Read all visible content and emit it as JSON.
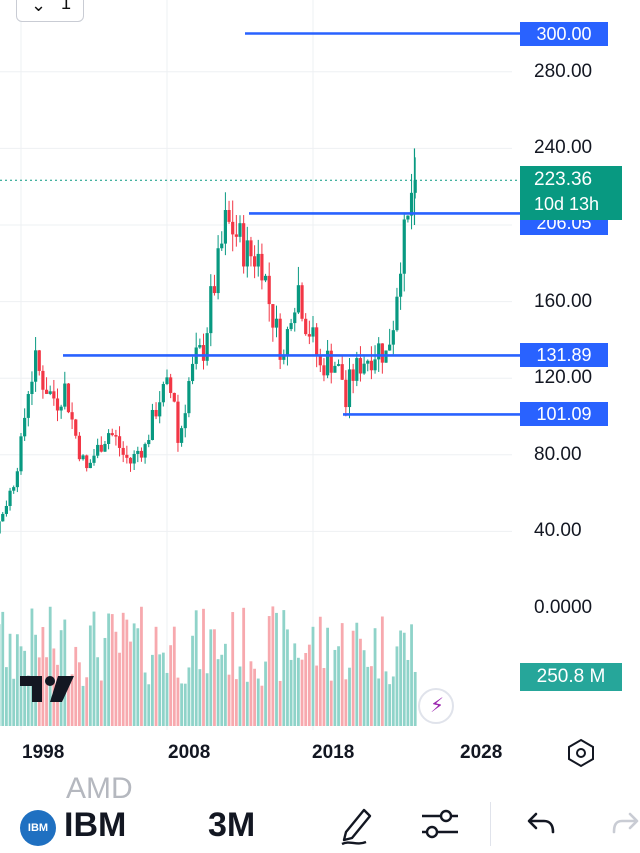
{
  "toolbar_top": {
    "widget_number": "1"
  },
  "y_axis": {
    "labels": [
      {
        "value": 280,
        "text": "280.00"
      },
      {
        "value": 240,
        "text": "240.00"
      },
      {
        "value": 160,
        "text": "160.00"
      },
      {
        "value": 120,
        "text": "120.00"
      },
      {
        "value": 80,
        "text": "80.00"
      },
      {
        "value": 40,
        "text": "40.00"
      },
      {
        "value": 0,
        "text": "0.0000"
      }
    ]
  },
  "levels": [
    {
      "value": 300.0,
      "text": "300.00"
    },
    {
      "value": 206.05,
      "text": "206.05"
    },
    {
      "value": 131.89,
      "text": "131.89"
    },
    {
      "value": 101.09,
      "text": "101.09"
    }
  ],
  "last_price": {
    "value": 223.36,
    "text": "223.36",
    "countdown": "10d 13h"
  },
  "volume_label": "250.8 M",
  "x_axis": {
    "labels": [
      "1998",
      "2008",
      "2018",
      "2028"
    ]
  },
  "bottom_bar": {
    "ghost_symbol": "AMD",
    "symbol_icon_text": "IBM",
    "symbol": "IBM",
    "interval": "3M"
  },
  "colors": {
    "up": "#089981",
    "down": "#f23645",
    "level": "#2962ff",
    "volume_up": "#8fd3c9",
    "volume_down": "#f7a9ae",
    "price_line": "#089981"
  },
  "chart_data": {
    "type": "candlestick",
    "symbol": "IBM",
    "interval": "3M",
    "x_ticks": [
      "1998",
      "2008",
      "2018",
      "2028"
    ],
    "ylim": [
      0,
      320
    ],
    "horizontal_lines": [
      300.0,
      206.05,
      131.89,
      101.09
    ],
    "last_price": 223.36,
    "series": [
      {
        "points": [
          [
            1994.0,
            20
          ],
          [
            1994.5,
            22
          ],
          [
            1995.0,
            25
          ],
          [
            1995.5,
            28
          ],
          [
            1996.0,
            36
          ],
          [
            1996.5,
            45
          ],
          [
            1997.0,
            55
          ],
          [
            1997.5,
            66
          ],
          [
            1998.0,
            85
          ],
          [
            1998.5,
            115
          ],
          [
            1999.0,
            128
          ],
          [
            1999.5,
            118
          ],
          [
            2000.0,
            112
          ],
          [
            2000.5,
            108
          ],
          [
            2001.0,
            115
          ],
          [
            2001.5,
            98
          ],
          [
            2002.0,
            82
          ],
          [
            2002.5,
            72
          ],
          [
            2003.0,
            80
          ],
          [
            2003.5,
            86
          ],
          [
            2004.0,
            92
          ],
          [
            2004.5,
            88
          ],
          [
            2005.0,
            80
          ],
          [
            2005.5,
            76
          ],
          [
            2006.0,
            82
          ],
          [
            2006.5,
            84
          ],
          [
            2007.0,
            98
          ],
          [
            2007.5,
            110
          ],
          [
            2008.0,
            115
          ],
          [
            2008.5,
            110
          ],
          [
            2008.8,
            82
          ],
          [
            2009.0,
            95
          ],
          [
            2009.5,
            118
          ],
          [
            2010.0,
            130
          ],
          [
            2010.5,
            135
          ],
          [
            2011.0,
            160
          ],
          [
            2011.5,
            178
          ],
          [
            2012.0,
            200
          ],
          [
            2012.5,
            198
          ],
          [
            2013.0,
            192
          ],
          [
            2013.5,
            185
          ],
          [
            2014.0,
            184
          ],
          [
            2014.5,
            182
          ],
          [
            2015.0,
            160
          ],
          [
            2015.5,
            145
          ],
          [
            2016.0,
            130
          ],
          [
            2016.5,
            158
          ],
          [
            2017.0,
            168
          ],
          [
            2017.5,
            150
          ],
          [
            2018.0,
            140
          ],
          [
            2018.5,
            125
          ],
          [
            2019.0,
            130
          ],
          [
            2019.5,
            128
          ],
          [
            2020.0,
            120
          ],
          [
            2020.3,
            103
          ],
          [
            2020.5,
            118
          ],
          [
            2021.0,
            125
          ],
          [
            2021.5,
            130
          ],
          [
            2022.0,
            132
          ],
          [
            2022.5,
            136
          ],
          [
            2023.0,
            132
          ],
          [
            2023.5,
            150
          ],
          [
            2024.0,
            185
          ],
          [
            2024.5,
            200
          ],
          [
            2024.8,
            220
          ],
          [
            2025.0,
            223.36
          ]
        ],
        "highlights": {
          "high": 240.0,
          "low_1996": 20
        }
      }
    ],
    "volume": {
      "last": "250.8 M"
    }
  }
}
